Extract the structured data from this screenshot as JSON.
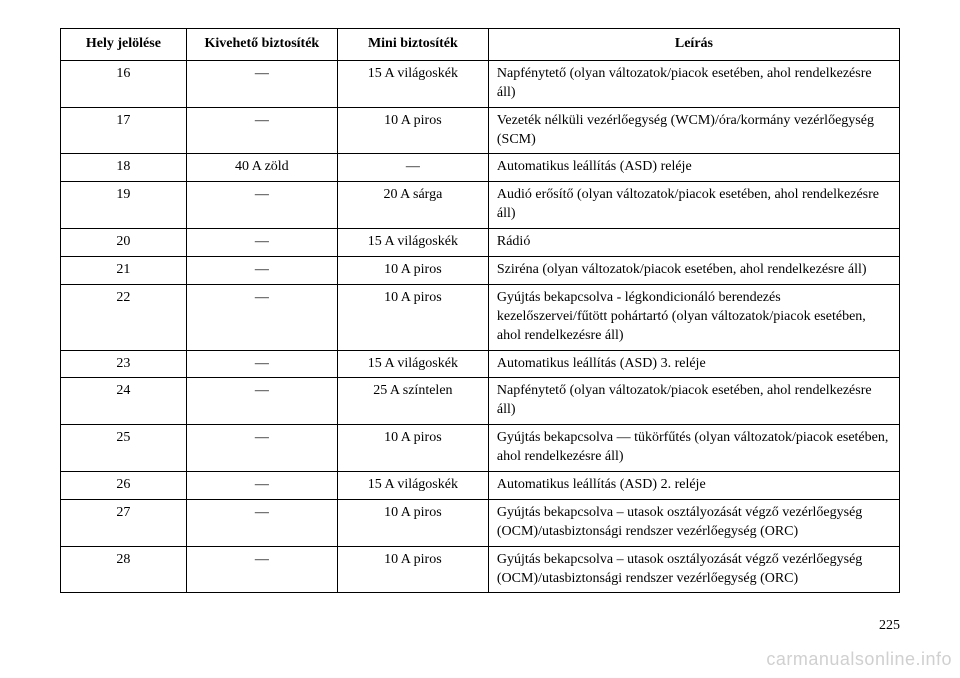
{
  "table": {
    "headers": {
      "col1": "Hely jelölése",
      "col2": "Kivehető biztosíték",
      "col3": "Mini biztosíték",
      "col4": "Leírás"
    },
    "rows": [
      {
        "c1": "16",
        "c2": "—",
        "c3": "15 A világoskék",
        "c4": "Napfénytető (olyan változatok/piacok esetében, ahol rendelkezésre áll)"
      },
      {
        "c1": "17",
        "c2": "—",
        "c3": "10 A piros",
        "c4": "Vezeték nélküli vezérlőegység (WCM)/óra/kormány vezérlőegység (SCM)"
      },
      {
        "c1": "18",
        "c2": "40 A zöld",
        "c3": "—",
        "c4": "Automatikus leállítás (ASD) reléje"
      },
      {
        "c1": "19",
        "c2": "—",
        "c3": "20 A sárga",
        "c4": "Audió erősítő (olyan változatok/piacok esetében, ahol rendelkezésre áll)"
      },
      {
        "c1": "20",
        "c2": "—",
        "c3": "15 A világoskék",
        "c4": "Rádió"
      },
      {
        "c1": "21",
        "c2": "—",
        "c3": "10 A piros",
        "c4": "Sziréna (olyan változatok/piacok esetében, ahol rendelkezésre áll)"
      },
      {
        "c1": "22",
        "c2": "—",
        "c3": "10 A piros",
        "c4": "Gyújtás bekapcsolva - légkondicionáló berendezés kezelőszervei/fűtött pohártartó (olyan változatok/piacok esetében, ahol rendelkezésre áll)"
      },
      {
        "c1": "23",
        "c2": "—",
        "c3": "15 A világoskék",
        "c4": "Automatikus leállítás (ASD) 3. reléje"
      },
      {
        "c1": "24",
        "c2": "—",
        "c3": "25 A színtelen",
        "c4": "Napfénytető (olyan változatok/piacok esetében, ahol rendelkezésre áll)"
      },
      {
        "c1": "25",
        "c2": "—",
        "c3": "10 A piros",
        "c4": "Gyújtás bekapcsolva — tükörfűtés (olyan változatok/piacok esetében, ahol rendelkezésre áll)"
      },
      {
        "c1": "26",
        "c2": "—",
        "c3": "15 A világoskék",
        "c4": "Automatikus leállítás (ASD) 2. reléje"
      },
      {
        "c1": "27",
        "c2": "—",
        "c3": "10 A piros",
        "c4": "Gyújtás bekapcsolva – utasok osztályozását végző vezérlőegység (OCM)/utasbiztonsági rendszer vezérlőegység (ORC)"
      },
      {
        "c1": "28",
        "c2": "—",
        "c3": "10 A piros",
        "c4": "Gyújtás bekapcsolva – utasok osztályozását végző vezérlőegység (OCM)/utasbiztonsági rendszer vezérlőegység (ORC)"
      }
    ]
  },
  "page_number": "225",
  "watermark": "carmanualsonline.info",
  "colors": {
    "text": "#000000",
    "border": "#000000",
    "background": "#ffffff",
    "watermark": "#d0d0d0"
  },
  "fonts": {
    "body_family": "Georgia, Times New Roman, serif",
    "body_size_pt": 11,
    "header_weight": "bold"
  }
}
